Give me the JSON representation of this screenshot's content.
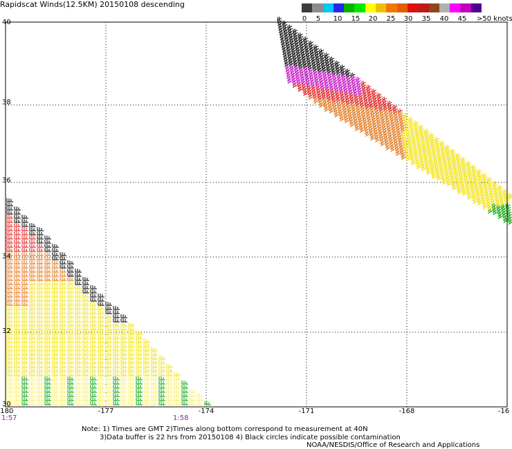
{
  "title": "Rapidscat Winds(12.5KM) 20150108 descending",
  "legend": {
    "colors": [
      "#3c3c3c",
      "#8c8c8c",
      "#00c8f0",
      "#2828e6",
      "#00b400",
      "#00e600",
      "#ffff00",
      "#f0c000",
      "#f07800",
      "#e06000",
      "#e01010",
      "#c01818",
      "#8c4818",
      "#b0b0b0",
      "#ff00ff",
      "#c000c0",
      "#50008c"
    ],
    "labels": [
      "0",
      "5",
      "10",
      "15",
      "20",
      "25",
      "30",
      "35",
      "40",
      "45",
      ">50 knots"
    ]
  },
  "axes": {
    "x_ticks": [
      "-180",
      "-177",
      "-174",
      "-171",
      "-168",
      "-16"
    ],
    "y_ticks": [
      "40",
      "38",
      "36",
      "34",
      "32",
      "30"
    ]
  },
  "times": [
    "1:57",
    "1:58"
  ],
  "notes": {
    "line1": "Note: 1) Times are GMT 2)Times along bottom correspond to measurement at 40N",
    "line2": "3)Data buffer is 22 hrs from 20150108 4) Black circles indicate possible contamination",
    "line3": "NOAA/NESDIS/Office of Research and Applications"
  },
  "wind_colors": {
    "black": "#000000",
    "magenta": "#c000c0",
    "red": "#e01010",
    "orange": "#e07010",
    "yellow": "#f0e000",
    "lightyellow": "#f8f060",
    "green": "#00a000"
  }
}
